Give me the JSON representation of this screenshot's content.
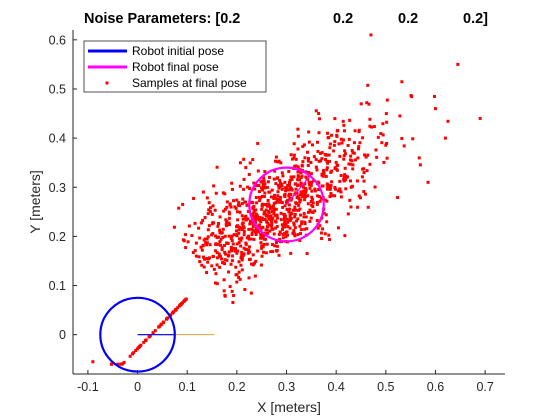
{
  "chart_data": {
    "type": "scatter",
    "title_parts": [
      "Noise Parameters: [0.2",
      "0.2",
      "0.2",
      "0.2]"
    ],
    "xlabel": "X [meters]",
    "ylabel": "Y [meters]",
    "xlim": [
      -0.13,
      0.74
    ],
    "ylim": [
      -0.08,
      0.62
    ],
    "xticks": [
      -0.1,
      0,
      0.1,
      0.2,
      0.3,
      0.4,
      0.5,
      0.6,
      0.7
    ],
    "xtick_labels": [
      "-0.1",
      "0",
      "0.1",
      "0.2",
      "0.3",
      "0.4",
      "0.5",
      "0.6",
      "0.7"
    ],
    "yticks": [
      0,
      0.1,
      0.2,
      0.3,
      0.4,
      0.5,
      0.6
    ],
    "ytick_labels": [
      "0",
      "0.1",
      "0.2",
      "0.3",
      "0.4",
      "0.5",
      "0.6"
    ],
    "grid": false,
    "legend_placement": "top-left",
    "legend": [
      {
        "label": "Robot initial pose",
        "kind": "line",
        "color": "#0000ff"
      },
      {
        "label": "Robot final pose",
        "kind": "line",
        "color": "#ff00ff"
      },
      {
        "label": "Samples at final pose",
        "kind": "marker",
        "color": "#ff0000"
      }
    ],
    "initial_pose": {
      "x": 0,
      "y": 0,
      "radius": 0.075,
      "heading_to": [
        0.075,
        0
      ],
      "color": "#0000ff"
    },
    "final_pose": {
      "x": 0.3,
      "y": 0.265,
      "radius": 0.075,
      "color": "#ff00ff"
    },
    "true_path": {
      "x": [
        0,
        0.155
      ],
      "y": [
        0,
        0
      ],
      "color": "#e8a33c"
    },
    "samples": {
      "count": 1000,
      "color": "#ff0000",
      "x_range": [
        -0.095,
        0.71
      ],
      "y_range": [
        -0.06,
        0.615
      ],
      "dense_centre": [
        0.27,
        0.25
      ],
      "outliers": [
        {
          "x": 0.47,
          "y": 0.61
        },
        {
          "x": 0.645,
          "y": 0.55
        },
        {
          "x": -0.09,
          "y": -0.055
        },
        {
          "x": 0.69,
          "y": 0.44
        },
        {
          "x": 0.62,
          "y": 0.4
        },
        {
          "x": 0.6,
          "y": 0.46
        },
        {
          "x": 0.585,
          "y": 0.31
        }
      ]
    }
  }
}
